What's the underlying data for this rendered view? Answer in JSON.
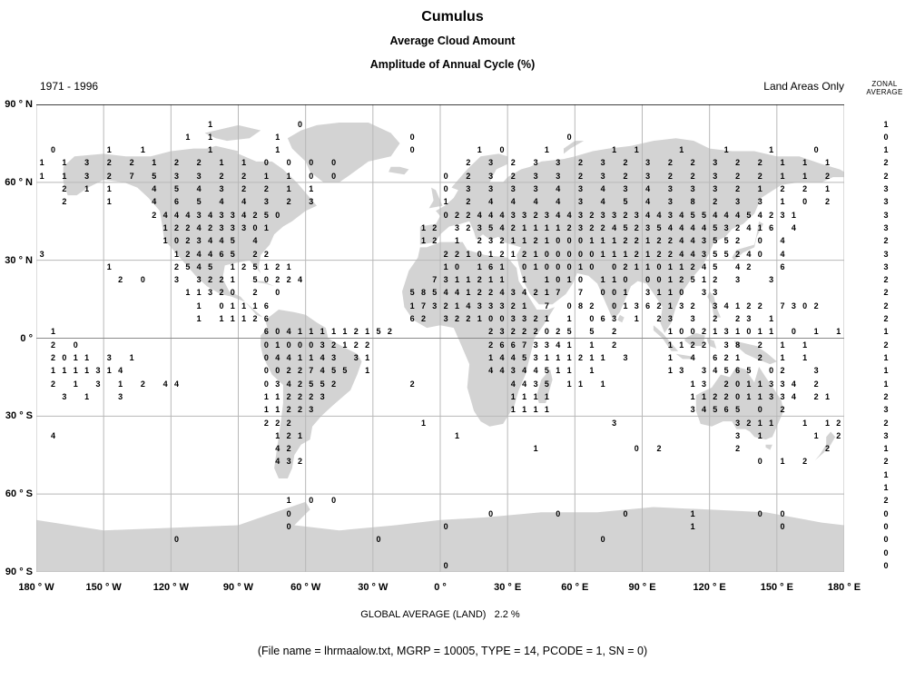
{
  "header": {
    "title": "Cumulus",
    "subtitle": "Average Cloud Amount",
    "subtitle2": "Amplitude of Annual Cycle (%)",
    "period": "1971 - 1996",
    "coverage": "Land Areas Only"
  },
  "zonal": {
    "header_line1": "ZONAL",
    "header_line2": "AVERAGE"
  },
  "axes": {
    "lat_labels": [
      "90 ° N",
      "60 ° N",
      "30 ° N",
      "0 °",
      "30 ° S",
      "60 ° S",
      "90 ° S"
    ],
    "lon_labels": [
      "180 ° W",
      "150 ° W",
      "120 ° W",
      "90 ° W",
      "60 ° W",
      "30 ° W",
      "0 °",
      "30 ° E",
      "60 ° E",
      "90 ° E",
      "120 ° E",
      "150 ° E",
      "180 ° E"
    ]
  },
  "footer": {
    "global_average": "GLOBAL AVERAGE (LAND)   2.2 %",
    "file_info": "(File name = lhrmaalow.txt, MGRP = 10005, TYPE = 14, PCODE = 1, SN = 0)"
  },
  "colors": {
    "land": "#d3d3d3",
    "grid": "#b8b8b8",
    "equator": "#8a8a8a",
    "frame": "#000000"
  },
  "chart_data": {
    "type": "heatmap",
    "title": "Cumulus - Average Cloud Amount - Amplitude of Annual Cycle (%)",
    "period": "1971 - 1996",
    "coverage": "Land Areas Only",
    "units": "%",
    "lat_range": [
      -90,
      90
    ],
    "lon_range": [
      -180,
      180
    ],
    "cell_deg": 5,
    "row_encoding": "36 latitude rows from 90N to 90S (5 deg bands); each segment is [startColumn, digitString] on a 72-column grid starting at 180W (5 deg per column); spaces = no data",
    "rows": [
      [],
      [
        [
          15,
          "1"
        ],
        [
          23,
          "0"
        ]
      ],
      [
        [
          13,
          "1"
        ],
        [
          15,
          "1"
        ],
        [
          21,
          "1"
        ],
        [
          33,
          "0"
        ],
        [
          47,
          "0"
        ]
      ],
      [
        [
          1,
          "0"
        ],
        [
          6,
          "1"
        ],
        [
          9,
          "1"
        ],
        [
          15,
          "1"
        ],
        [
          21,
          "1"
        ],
        [
          33,
          "0"
        ],
        [
          39,
          "1"
        ],
        [
          41,
          "0"
        ],
        [
          45,
          "1"
        ],
        [
          51,
          "1"
        ],
        [
          53,
          "1"
        ],
        [
          57,
          "1"
        ],
        [
          61,
          "1"
        ],
        [
          65,
          "1"
        ],
        [
          69,
          "0"
        ]
      ],
      [
        [
          0,
          "1 1 3 2 2 1 2 2 1 1 0 0 0 0"
        ],
        [
          38,
          "2 3 2 3 3 2 3 2 3 2 2 3 2 2 1 1 1"
        ]
      ],
      [
        [
          0,
          "1 1 3 2 7 5 3 3 2 2 1 1 0 0"
        ],
        [
          36,
          "0 2 3 2 3 3 2 3 2 3 2 2 3 2 2 1 1 2"
        ]
      ],
      [
        [
          2,
          "2 1 1"
        ],
        [
          10,
          "4 5 4 3 2 2 1 1"
        ],
        [
          36,
          "0 3 3 3 3 4 3 4 3 4 3 3 3 2 1 2 2 1"
        ]
      ],
      [
        [
          2,
          "2"
        ],
        [
          6,
          "1"
        ],
        [
          10,
          "4 6 5 4 4 3 2 3"
        ],
        [
          36,
          "1 2 4 4 4 4 3 4 5 4 3 8 2 3 3 1 0 2"
        ]
      ],
      [
        [
          10,
          "244434334250"
        ],
        [
          36,
          "02244433234432332344345544454231"
        ]
      ],
      [
        [
          11,
          "1224233301"
        ],
        [
          34,
          "12 32354211112322452354444532416 4"
        ]
      ],
      [
        [
          11,
          "1023445 4"
        ],
        [
          34,
          "12 1 232112100011122122443552 0 4"
        ]
      ],
      [
        [
          0,
          "3"
        ],
        [
          12,
          "124465 22"
        ],
        [
          36,
          "22101212100000111212244355240 4"
        ]
      ],
      [
        [
          6,
          "1"
        ],
        [
          12,
          "2545 125121"
        ],
        [
          36,
          "10 161 0100010 0211011245 42"
        ],
        [
          66,
          "6"
        ]
      ],
      [
        [
          7,
          "2 0"
        ],
        [
          12,
          "3 3221 50224"
        ],
        [
          35,
          "7311211 1 1010 110 0012512 3  3"
        ]
      ],
      [
        [
          13,
          "11320 2 0"
        ],
        [
          33,
          "58544122434217 7 001 3110 33"
        ]
      ],
      [
        [
          14,
          "1 01116"
        ],
        [
          33,
          "17321433321 7 082 01362132 34122 7302"
        ]
      ],
      [
        [
          14,
          "1 11126"
        ],
        [
          33,
          "62 3221003321 1 063 1 23 3 2 23 1"
        ]
      ],
      [
        [
          1,
          "1"
        ],
        [
          20,
          "604111112152"
        ],
        [
          40,
          "23222025 5 2"
        ],
        [
          56,
          "1002131011 0 1 1"
        ]
      ],
      [
        [
          1,
          "2 0"
        ],
        [
          20,
          "0100032122"
        ],
        [
          40,
          "26673341 1 2"
        ],
        [
          56,
          "1122 38 2 1 1"
        ]
      ],
      [
        [
          1,
          "2011 3 1"
        ],
        [
          20,
          "0441143 31"
        ],
        [
          40,
          "14453111211 3"
        ],
        [
          56,
          "1 4 621 2 1 1"
        ]
      ],
      [
        [
          1,
          "1111314"
        ],
        [
          20,
          "00227455 1"
        ],
        [
          40,
          "44344511 1"
        ],
        [
          56,
          "13 34565 02"
        ],
        [
          69,
          "3"
        ]
      ],
      [
        [
          1,
          "2 1 3 1 2 44"
        ],
        [
          20,
          "0342552"
        ],
        [
          33,
          "2"
        ],
        [
          42,
          "4435 11 1"
        ],
        [
          58,
          "13 2011334 2"
        ]
      ],
      [
        [
          2,
          "3 1"
        ],
        [
          7,
          "3"
        ],
        [
          20,
          "112223"
        ],
        [
          42,
          "1111"
        ],
        [
          58,
          "1122011334 2"
        ],
        [
          70,
          "1"
        ]
      ],
      [
        [
          20,
          "11223"
        ],
        [
          42,
          "1111"
        ],
        [
          58,
          "34565 0 2"
        ]
      ],
      [
        [
          20,
          "222"
        ],
        [
          34,
          "1"
        ],
        [
          51,
          "3"
        ],
        [
          62,
          "3211"
        ],
        [
          68,
          "1"
        ],
        [
          70,
          "12"
        ]
      ],
      [
        [
          1,
          "4"
        ],
        [
          21,
          "121"
        ],
        [
          37,
          "1"
        ],
        [
          62,
          "3 1"
        ],
        [
          69,
          "1 2"
        ]
      ],
      [
        [
          21,
          "42"
        ],
        [
          44,
          "1"
        ],
        [
          53,
          "0 2"
        ],
        [
          62,
          "2"
        ],
        [
          70,
          "2"
        ]
      ],
      [
        [
          21,
          "432"
        ],
        [
          64,
          "0 1 2"
        ]
      ],
      [],
      [],
      [
        [
          22,
          "1 0 0"
        ]
      ],
      [
        [
          22,
          "0"
        ],
        [
          40,
          "0"
        ],
        [
          46,
          "0"
        ],
        [
          52,
          "0"
        ],
        [
          58,
          "1"
        ],
        [
          64,
          "0 0"
        ]
      ],
      [
        [
          22,
          "0"
        ],
        [
          36,
          "0"
        ],
        [
          58,
          "1"
        ],
        [
          66,
          "0"
        ]
      ],
      [
        [
          12,
          "0"
        ],
        [
          30,
          "0"
        ],
        [
          50,
          "0"
        ]
      ],
      [],
      [
        [
          36,
          "0"
        ]
      ]
    ],
    "zonal_average": [
      "",
      "1",
      "0",
      "1",
      "2",
      "2",
      "3",
      "3",
      "3",
      "3",
      "2",
      "3",
      "3",
      "2",
      "2",
      "2",
      "2",
      "1",
      "2",
      "1",
      "1",
      "1",
      "2",
      "3",
      "2",
      "3",
      "1",
      "2",
      "1",
      "1",
      "2",
      "0",
      "0",
      "0",
      "0",
      "0"
    ],
    "global_average_land": 2.2
  }
}
